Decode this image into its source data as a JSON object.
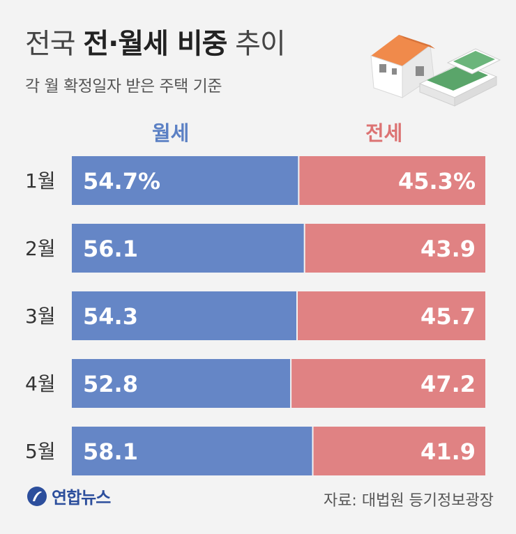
{
  "title": {
    "normal1": "전국 ",
    "bold": "전·월세 비중",
    "normal2": " 추이"
  },
  "subtitle": "각 월 확정일자 받은 주택 기준",
  "legend": {
    "monthly": "월세",
    "jeonse": "전세"
  },
  "footer": {
    "logo_text": "연합뉴스",
    "source": "자료: 대법원 등기정보광장"
  },
  "colors": {
    "monthly": "#6586c6",
    "jeonse": "#e08283",
    "monthly_label": "#5b80c4",
    "jeonse_label": "#dc7373"
  },
  "chart_data": {
    "type": "bar",
    "stacked": true,
    "orientation": "horizontal",
    "categories": [
      "1월",
      "2월",
      "3월",
      "4월",
      "5월"
    ],
    "series": [
      {
        "name": "월세",
        "values": [
          54.7,
          56.1,
          54.3,
          52.8,
          58.1
        ],
        "labels": [
          "54.7%",
          "56.1",
          "54.3",
          "52.8",
          "58.1"
        ]
      },
      {
        "name": "전세",
        "values": [
          45.3,
          43.9,
          45.7,
          47.2,
          41.9
        ],
        "labels": [
          "45.3%",
          "43.9",
          "45.7",
          "47.2",
          "41.9"
        ]
      }
    ],
    "xlim": [
      0,
      100
    ]
  }
}
